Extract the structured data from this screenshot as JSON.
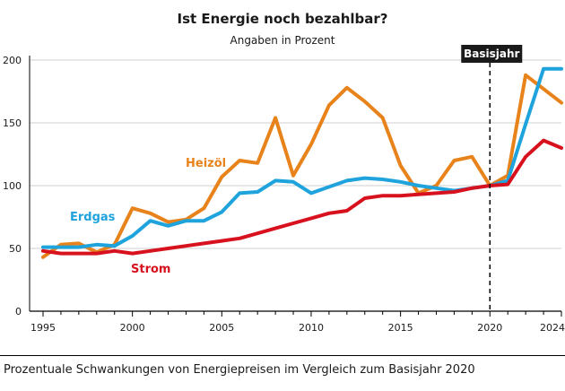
{
  "chart_data": {
    "type": "line",
    "title": "Ist Energie noch bezahlbar?",
    "subtitle": "Angaben in Prozent",
    "caption": "Prozentuale Schwankungen von Energiepreisen im Vergleich zum Basisjahr 2020",
    "xlim": [
      1995,
      2024
    ],
    "ylim": [
      0,
      200
    ],
    "x_ticks": [
      1995,
      2000,
      2005,
      2010,
      2015,
      2020,
      2024
    ],
    "y_ticks": [
      0,
      50,
      100,
      150,
      200
    ],
    "grid": true,
    "baseline": {
      "x": 2020,
      "label": "Basisjahr"
    },
    "x": [
      1995,
      1996,
      1997,
      1998,
      1999,
      2000,
      2001,
      2002,
      2003,
      2004,
      2005,
      2006,
      2007,
      2008,
      2009,
      2010,
      2011,
      2012,
      2013,
      2014,
      2015,
      2016,
      2017,
      2018,
      2019,
      2020,
      2021,
      2022,
      2023,
      2024
    ],
    "series": [
      {
        "name": "Heizöl",
        "color": "#e8821a",
        "values": [
          43,
          53,
          54,
          47,
          53,
          82,
          78,
          71,
          73,
          82,
          107,
          120,
          118,
          154,
          108,
          133,
          164,
          178,
          167,
          154,
          116,
          94,
          100,
          120,
          123,
          100,
          108,
          188,
          177,
          166
        ]
      },
      {
        "name": "Erdgas",
        "color": "#1ea3dc",
        "values": [
          51,
          51,
          51,
          53,
          52,
          60,
          72,
          68,
          72,
          72,
          79,
          94,
          95,
          104,
          103,
          94,
          99,
          104,
          106,
          105,
          103,
          100,
          98,
          96,
          98,
          100,
          104,
          149,
          193,
          193
        ]
      },
      {
        "name": "Strom",
        "color": "#d7121e",
        "values": [
          48,
          46,
          46,
          46,
          48,
          46,
          48,
          50,
          52,
          54,
          56,
          58,
          62,
          66,
          70,
          74,
          78,
          80,
          90,
          92,
          92,
          93,
          94,
          95,
          98,
          100,
          101,
          123,
          136,
          130
        ]
      }
    ]
  }
}
